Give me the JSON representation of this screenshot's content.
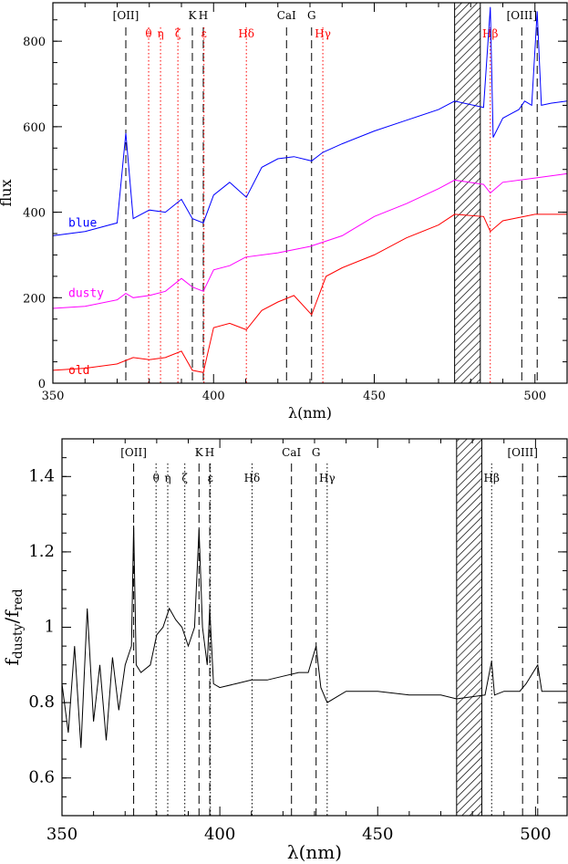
{
  "chart_data": [
    {
      "type": "line",
      "xlabel": "λ(nm)",
      "ylabel": "flux",
      "xlim": [
        350,
        510
      ],
      "ylim": [
        0,
        890
      ],
      "x_ticks": [
        350,
        400,
        450,
        500
      ],
      "y_ticks": [
        0,
        200,
        400,
        600,
        800
      ],
      "series": [
        {
          "name": "blue",
          "color": "#0000ff",
          "x": [
            350,
            360,
            370,
            372.7,
            375,
            380,
            385,
            390,
            393.4,
            396.8,
            400,
            405,
            410.2,
            415,
            420,
            425,
            430.5,
            434,
            440,
            450,
            460,
            470,
            475,
            484,
            486.1,
            487,
            490,
            495,
            496.8,
            499,
            500.7,
            502,
            505,
            510
          ],
          "y": [
            345,
            355,
            375,
            585,
            385,
            405,
            400,
            430,
            385,
            375,
            440,
            470,
            435,
            505,
            525,
            530,
            520,
            540,
            560,
            590,
            615,
            640,
            660,
            645,
            880,
            575,
            620,
            640,
            660,
            650,
            870,
            650,
            655,
            660
          ]
        },
        {
          "name": "dusty",
          "color": "#ff00ff",
          "x": [
            350,
            360,
            370,
            372.7,
            375,
            380,
            385,
            390,
            393.4,
            396.8,
            400,
            405,
            410,
            420,
            430,
            440,
            450,
            460,
            470,
            475,
            484,
            486.1,
            490,
            500,
            510
          ],
          "y": [
            175,
            180,
            195,
            210,
            200,
            205,
            215,
            245,
            225,
            215,
            265,
            275,
            295,
            305,
            320,
            345,
            390,
            420,
            455,
            475,
            465,
            445,
            470,
            480,
            490
          ]
        },
        {
          "name": "old",
          "color": "#ff0000",
          "x": [
            350,
            360,
            370,
            375,
            380,
            385,
            390,
            393.4,
            396.8,
            400,
            405,
            410.2,
            415,
            420,
            425,
            430.5,
            435,
            440,
            450,
            460,
            470,
            475,
            484,
            486.1,
            490,
            500,
            510
          ],
          "y": [
            30,
            35,
            45,
            60,
            55,
            60,
            75,
            30,
            25,
            130,
            140,
            125,
            170,
            190,
            205,
            160,
            250,
            270,
            300,
            340,
            370,
            395,
            390,
            355,
            380,
            395,
            395
          ]
        }
      ],
      "lines": [
        {
          "label": "[OII]",
          "x": 372.7,
          "style": "dashed",
          "color": "#000000"
        },
        {
          "label": "θ",
          "x": 379.8,
          "style": "dotted",
          "color": "#ff0000"
        },
        {
          "label": "η",
          "x": 383.5,
          "style": "dotted",
          "color": "#ff0000"
        },
        {
          "label": "ζ",
          "x": 388.9,
          "style": "dotted",
          "color": "#ff0000"
        },
        {
          "label": "K",
          "x": 393.4,
          "style": "dashed",
          "color": "#000000"
        },
        {
          "label": "H",
          "x": 396.8,
          "style": "dashed",
          "color": "#000000"
        },
        {
          "label": "ε",
          "x": 397.0,
          "style": "dotted",
          "color": "#ff0000"
        },
        {
          "label": "Hδ",
          "x": 410.2,
          "style": "dotted",
          "color": "#ff0000"
        },
        {
          "label": "CaI",
          "x": 422.7,
          "style": "dashed",
          "color": "#000000"
        },
        {
          "label": "G",
          "x": 430.5,
          "style": "dashed",
          "color": "#000000"
        },
        {
          "label": "Hγ",
          "x": 434.0,
          "style": "dotted",
          "color": "#ff0000"
        },
        {
          "label": "Hβ",
          "x": 486.1,
          "style": "dotted",
          "color": "#ff0000"
        },
        {
          "label": "[OIII]",
          "x": 495.9,
          "style": "dashed",
          "color": "#000000"
        },
        {
          "label": "",
          "x": 500.7,
          "style": "dashed",
          "color": "#000000"
        }
      ],
      "masked_region": [
        475,
        483
      ]
    },
    {
      "type": "line",
      "xlabel": "λ(nm)",
      "ylabel": "fdusty/fred",
      "ylabel_main": "f",
      "ylabel_sub1": "dusty",
      "ylabel_sep": "/f",
      "ylabel_sub2": "red",
      "xlim": [
        350,
        510
      ],
      "ylim": [
        0.5,
        1.5
      ],
      "x_ticks": [
        350,
        400,
        450,
        500
      ],
      "y_ticks": [
        0.6,
        0.8,
        1,
        1.2,
        1.4
      ],
      "series": [
        {
          "name": "",
          "color": "#000000",
          "x": [
            350,
            352,
            354,
            356,
            358,
            360,
            362,
            364,
            366,
            368,
            370,
            372,
            372.7,
            373.5,
            375,
            378,
            380,
            382,
            384,
            386,
            388,
            390,
            392,
            393.4,
            394.5,
            396,
            396.8,
            398,
            400,
            405,
            410,
            415,
            420,
            425,
            428,
            430.5,
            432,
            434,
            440,
            450,
            460,
            470,
            475,
            484,
            486.1,
            487,
            490,
            495,
            497,
            500.7,
            502,
            505,
            510
          ],
          "y": [
            0.85,
            0.72,
            0.95,
            0.68,
            1.05,
            0.75,
            0.9,
            0.7,
            0.92,
            0.78,
            0.9,
            0.95,
            1.27,
            0.9,
            0.88,
            0.9,
            0.98,
            1.0,
            1.05,
            1.02,
            1.0,
            0.95,
            1.0,
            1.26,
            1.0,
            0.9,
            1.05,
            0.85,
            0.84,
            0.85,
            0.86,
            0.86,
            0.87,
            0.88,
            0.88,
            0.95,
            0.84,
            0.8,
            0.83,
            0.83,
            0.82,
            0.82,
            0.81,
            0.82,
            0.91,
            0.82,
            0.83,
            0.83,
            0.85,
            0.9,
            0.83,
            0.83,
            0.83
          ]
        }
      ],
      "lines": [
        {
          "label": "[OII]",
          "x": 372.7,
          "style": "dashed",
          "color": "#000000"
        },
        {
          "label": "θ",
          "x": 379.8,
          "style": "dotted",
          "color": "#000000"
        },
        {
          "label": "η",
          "x": 383.5,
          "style": "dotted",
          "color": "#000000"
        },
        {
          "label": "ζ",
          "x": 388.9,
          "style": "dotted",
          "color": "#000000"
        },
        {
          "label": "K",
          "x": 393.4,
          "style": "dashed",
          "color": "#000000"
        },
        {
          "label": "H",
          "x": 396.8,
          "style": "dashed",
          "color": "#000000"
        },
        {
          "label": "ε",
          "x": 397.0,
          "style": "dotted",
          "color": "#000000"
        },
        {
          "label": "Hδ",
          "x": 410.2,
          "style": "dotted",
          "color": "#000000"
        },
        {
          "label": "CaI",
          "x": 422.7,
          "style": "dashed",
          "color": "#000000"
        },
        {
          "label": "G",
          "x": 430.5,
          "style": "dashed",
          "color": "#000000"
        },
        {
          "label": "Hγ",
          "x": 434.0,
          "style": "dotted",
          "color": "#000000"
        },
        {
          "label": "Hβ",
          "x": 486.1,
          "style": "dotted",
          "color": "#000000"
        },
        {
          "label": "[OIII]",
          "x": 495.9,
          "style": "dashed",
          "color": "#000000"
        },
        {
          "label": "",
          "x": 500.7,
          "style": "dashed",
          "color": "#000000"
        }
      ],
      "masked_region": [
        475,
        483
      ]
    }
  ]
}
